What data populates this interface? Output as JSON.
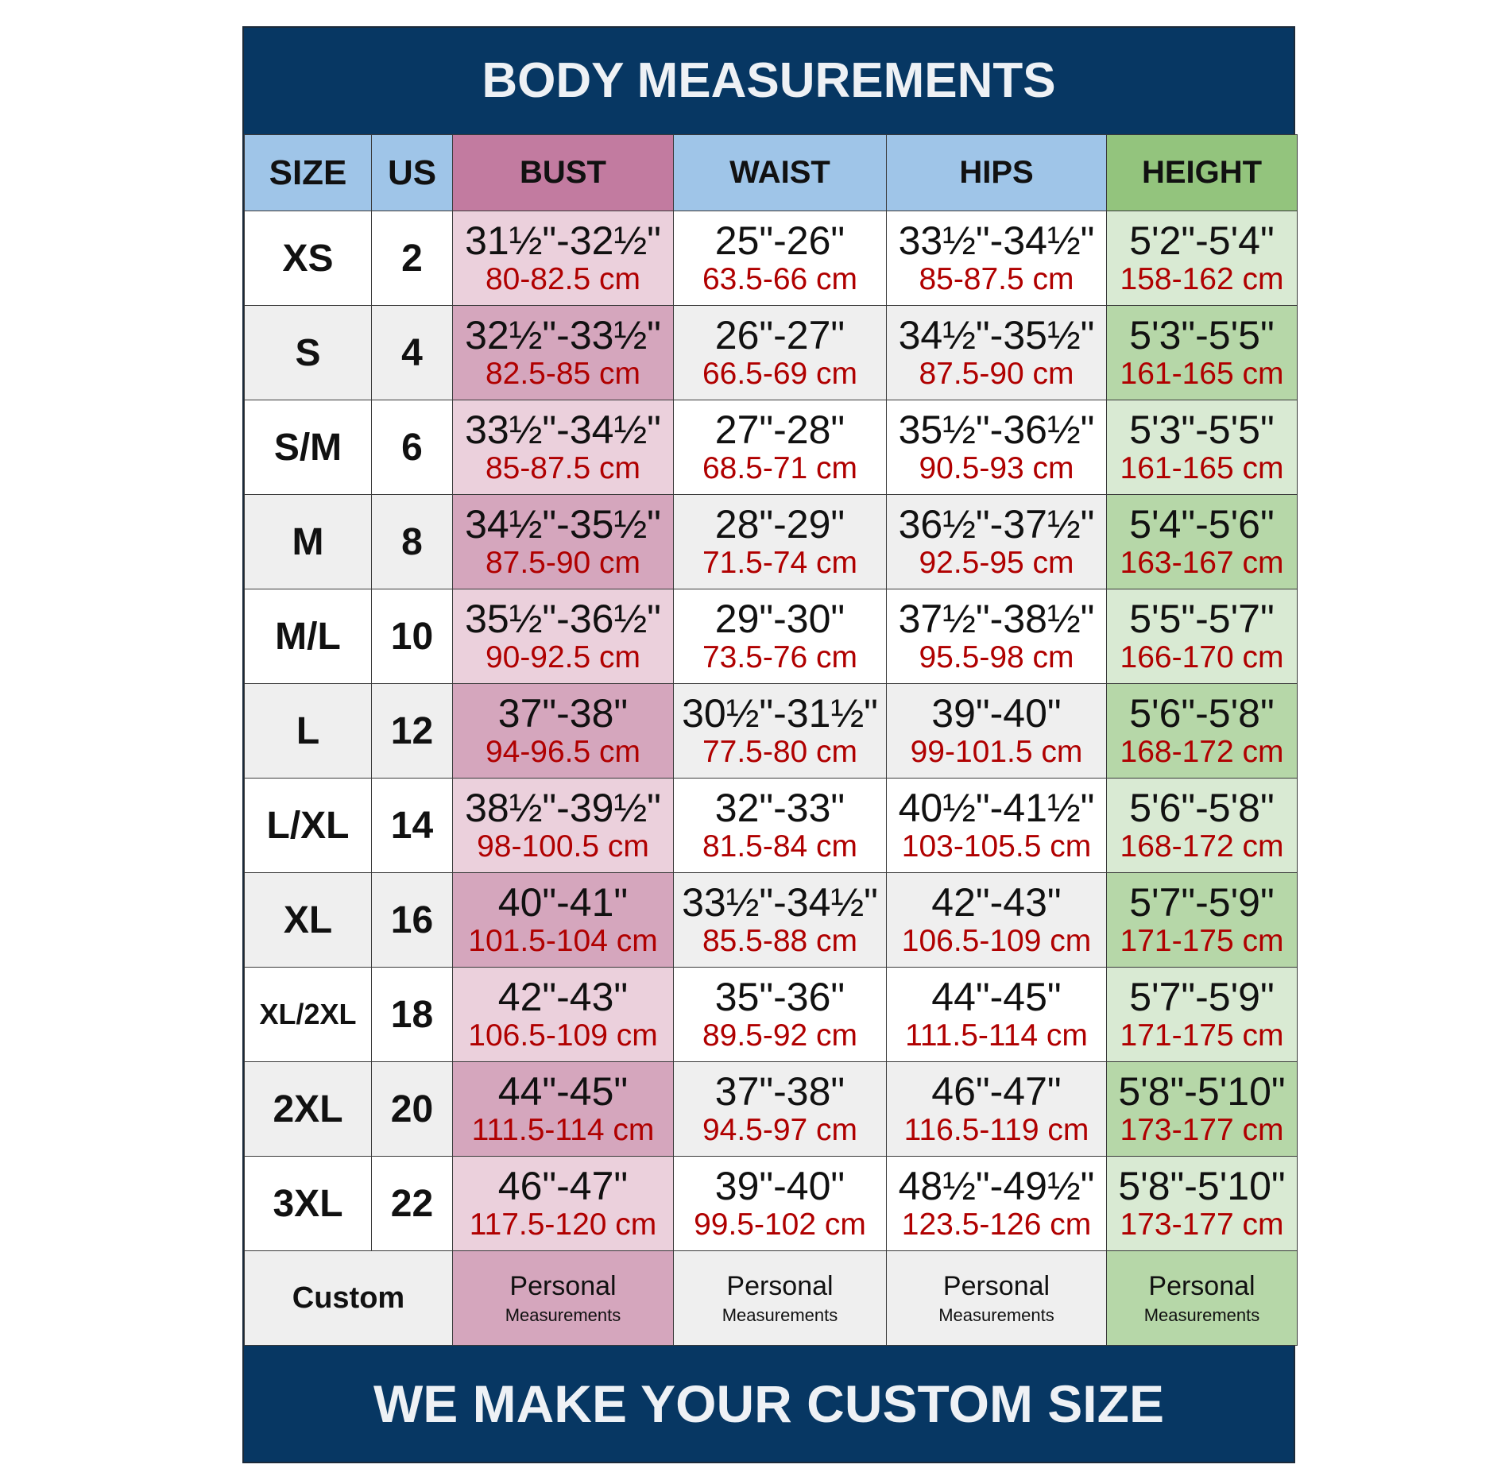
{
  "title": "BODY MEASUREMENTS",
  "footer": "WE MAKE YOUR CUSTOM SIZE",
  "colors": {
    "navy": "#073763",
    "header_blue": "#9fc5e8",
    "bust_header": "#c27ba0",
    "height_header": "#93c47d",
    "cm_text": "#b00000"
  },
  "headers": [
    "SIZE",
    "US",
    "BUST",
    "WAIST",
    "HIPS",
    "HEIGHT"
  ],
  "rows": [
    {
      "size": "XS",
      "us": "2",
      "bust": [
        "31½\"-32½\"",
        "80-82.5 cm"
      ],
      "waist": [
        "25\"-26\"",
        "63.5-66 cm"
      ],
      "hips": [
        "33½\"-34½\"",
        "85-87.5 cm"
      ],
      "height": [
        "5'2\"-5'4\"",
        "158-162 cm"
      ]
    },
    {
      "size": "S",
      "us": "4",
      "bust": [
        "32½\"-33½\"",
        "82.5-85 cm"
      ],
      "waist": [
        "26\"-27\"",
        "66.5-69 cm"
      ],
      "hips": [
        "34½\"-35½\"",
        "87.5-90 cm"
      ],
      "height": [
        "5'3\"-5'5\"",
        "161-165 cm"
      ]
    },
    {
      "size": "S/M",
      "us": "6",
      "bust": [
        "33½\"-34½\"",
        "85-87.5 cm"
      ],
      "waist": [
        "27\"-28\"",
        "68.5-71 cm"
      ],
      "hips": [
        "35½\"-36½\"",
        "90.5-93 cm"
      ],
      "height": [
        "5'3\"-5'5\"",
        "161-165 cm"
      ]
    },
    {
      "size": "M",
      "us": "8",
      "bust": [
        "34½\"-35½\"",
        "87.5-90 cm"
      ],
      "waist": [
        "28\"-29\"",
        "71.5-74 cm"
      ],
      "hips": [
        "36½\"-37½\"",
        "92.5-95 cm"
      ],
      "height": [
        "5'4\"-5'6\"",
        "163-167 cm"
      ]
    },
    {
      "size": "M/L",
      "us": "10",
      "bust": [
        "35½\"-36½\"",
        "90-92.5 cm"
      ],
      "waist": [
        "29\"-30\"",
        "73.5-76 cm"
      ],
      "hips": [
        "37½\"-38½\"",
        "95.5-98 cm"
      ],
      "height": [
        "5'5\"-5'7\"",
        "166-170 cm"
      ]
    },
    {
      "size": "L",
      "us": "12",
      "bust": [
        "37\"-38\"",
        "94-96.5 cm"
      ],
      "waist": [
        "30½\"-31½\"",
        "77.5-80 cm"
      ],
      "hips": [
        "39\"-40\"",
        "99-101.5 cm"
      ],
      "height": [
        "5'6\"-5'8\"",
        "168-172 cm"
      ]
    },
    {
      "size": "L/XL",
      "us": "14",
      "bust": [
        "38½\"-39½\"",
        "98-100.5 cm"
      ],
      "waist": [
        "32\"-33\"",
        "81.5-84 cm"
      ],
      "hips": [
        "40½\"-41½\"",
        "103-105.5 cm"
      ],
      "height": [
        "5'6\"-5'8\"",
        "168-172 cm"
      ]
    },
    {
      "size": "XL",
      "us": "16",
      "bust": [
        "40\"-41\"",
        "101.5-104 cm"
      ],
      "waist": [
        "33½\"-34½\"",
        "85.5-88 cm"
      ],
      "hips": [
        "42\"-43\"",
        "106.5-109 cm"
      ],
      "height": [
        "5'7\"-5'9\"",
        "171-175 cm"
      ]
    },
    {
      "size": "XL/2XL",
      "us": "18",
      "bust": [
        "42\"-43\"",
        "106.5-109 cm"
      ],
      "waist": [
        "35\"-36\"",
        "89.5-92 cm"
      ],
      "hips": [
        "44\"-45\"",
        "111.5-114 cm"
      ],
      "height": [
        "5'7\"-5'9\"",
        "171-175 cm"
      ]
    },
    {
      "size": "2XL",
      "us": "20",
      "bust": [
        "44\"-45\"",
        "111.5-114 cm"
      ],
      "waist": [
        "37\"-38\"",
        "94.5-97 cm"
      ],
      "hips": [
        "46\"-47\"",
        "116.5-119 cm"
      ],
      "height": [
        "5'8\"-5'10\"",
        "173-177 cm"
      ]
    },
    {
      "size": "3XL",
      "us": "22",
      "bust": [
        "46\"-47\"",
        "117.5-120 cm"
      ],
      "waist": [
        "39\"-40\"",
        "99.5-102 cm"
      ],
      "hips": [
        "48½\"-49½\"",
        "123.5-126 cm"
      ],
      "height": [
        "5'8\"-5'10\"",
        "173-177 cm"
      ]
    }
  ],
  "custom": {
    "label": "Custom",
    "cell_line1": "Personal",
    "cell_line2": "Measurements"
  }
}
